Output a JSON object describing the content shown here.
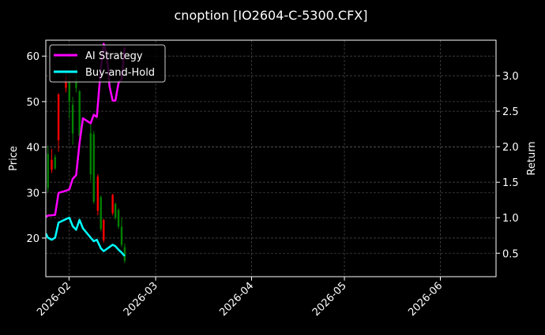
{
  "title": "cnoption [IO2604-C-5300.CFX]",
  "chart_data": {
    "type": "line",
    "title": "cnoption [IO2604-C-5300.CFX]",
    "xlabel": "",
    "ylabel": "Price",
    "ylabel_right": "Return",
    "grid": true,
    "legend_position": "upper left",
    "x_tick_labels": [
      "2026-02",
      "2026-03",
      "2026-04",
      "2026-05",
      "2026-06"
    ],
    "y_left_ticks": [
      20,
      30,
      40,
      50,
      60
    ],
    "y_left_range": [
      11.5,
      63.5
    ],
    "y_right_ticks": [
      0.5,
      1.0,
      1.5,
      2.0,
      2.5,
      3.0
    ],
    "y_right_range": [
      0.17,
      3.5
    ],
    "x_range_days": [
      -7.5,
      138
    ],
    "legend": [
      {
        "name": "AI Strategy",
        "color": "#ff00ff"
      },
      {
        "name": "Buy-and-Hold",
        "color": "#00ffff"
      }
    ],
    "colors": {
      "up": "#008000",
      "down": "#ff0000",
      "grid": "#444444",
      "axes": "#ffffff",
      "background": "#000000"
    },
    "candles": [
      {
        "d": -6.8,
        "o": 31.0,
        "h": 40.3,
        "l": 30.0,
        "c": 38.5
      },
      {
        "d": -5.6,
        "o": 37.2,
        "h": 39.6,
        "l": 34.3,
        "c": 35.0
      },
      {
        "d": -4.5,
        "o": 35.3,
        "h": 38.4,
        "l": 35.0,
        "c": 37.8
      },
      {
        "d": -3.4,
        "o": 51.6,
        "h": 51.8,
        "l": 39.0,
        "c": 41.5
      },
      {
        "d": -1.0,
        "o": 55.5,
        "h": 57.0,
        "l": 52.0,
        "c": 53.0
      },
      {
        "d": 0.1,
        "o": 50.0,
        "h": 56.0,
        "l": 46.3,
        "c": 54.5
      },
      {
        "d": 1.2,
        "o": 43.0,
        "h": 51.0,
        "l": 40.5,
        "c": 49.3
      },
      {
        "d": 2.3,
        "o": 53.0,
        "h": 58.0,
        "l": 52.0,
        "c": 55.0
      },
      {
        "d": 3.4,
        "o": 42.5,
        "h": 52.5,
        "l": 40.0,
        "c": 52.3
      },
      {
        "d": 7.0,
        "o": 34.0,
        "h": 45.0,
        "l": 32.5,
        "c": 43.0
      },
      {
        "d": 8.0,
        "o": 28.0,
        "h": 43.5,
        "l": 27.5,
        "c": 42.8
      },
      {
        "d": 9.3,
        "o": 33.5,
        "h": 34.0,
        "l": 25.0,
        "c": 26.0
      },
      {
        "d": 10.3,
        "o": 22.0,
        "h": 29.3,
        "l": 21.5,
        "c": 29.0
      },
      {
        "d": 11.2,
        "o": 24.0,
        "h": 24.2,
        "l": 19.0,
        "c": 19.5
      },
      {
        "d": 14.1,
        "o": 29.5,
        "h": 29.7,
        "l": 25.0,
        "c": 25.5
      },
      {
        "d": 15.0,
        "o": 24.5,
        "h": 27.8,
        "l": 24.0,
        "c": 27.5
      },
      {
        "d": 16.0,
        "o": 22.5,
        "h": 26.5,
        "l": 22.0,
        "c": 26.2
      },
      {
        "d": 17.0,
        "o": 18.5,
        "h": 24.5,
        "l": 18.0,
        "c": 22.5
      },
      {
        "d": 18.0,
        "o": 15.0,
        "h": 18.8,
        "l": 14.5,
        "c": 18.0
      }
    ],
    "series": [
      {
        "name": "AI Strategy",
        "axis": "right",
        "color": "#ff00ff",
        "points": [
          [
            -7.5,
            1.01
          ],
          [
            -6.8,
            1.03
          ],
          [
            -4.5,
            1.04
          ],
          [
            -3.4,
            1.35
          ],
          [
            -1.0,
            1.38
          ],
          [
            0.1,
            1.4
          ],
          [
            1.2,
            1.55
          ],
          [
            2.3,
            1.6
          ],
          [
            3.4,
            2.05
          ],
          [
            4.5,
            2.4
          ],
          [
            7.0,
            2.33
          ],
          [
            8.0,
            2.45
          ],
          [
            9.0,
            2.42
          ],
          [
            10.3,
            3.1
          ],
          [
            11.2,
            3.45
          ],
          [
            12.2,
            3.3
          ],
          [
            13.1,
            2.85
          ],
          [
            14.1,
            2.65
          ],
          [
            15.0,
            2.65
          ],
          [
            16.0,
            2.9
          ],
          [
            17.0,
            2.95
          ],
          [
            18.0,
            3.4
          ]
        ]
      },
      {
        "name": "Buy-and-Hold",
        "axis": "right",
        "color": "#00ffff",
        "points": [
          [
            -7.5,
            0.78
          ],
          [
            -6.8,
            0.72
          ],
          [
            -5.6,
            0.69
          ],
          [
            -4.5,
            0.72
          ],
          [
            -3.4,
            0.93
          ],
          [
            -1.0,
            0.98
          ],
          [
            0.1,
            1.0
          ],
          [
            1.2,
            0.88
          ],
          [
            2.3,
            0.83
          ],
          [
            3.4,
            0.97
          ],
          [
            4.5,
            0.85
          ],
          [
            7.0,
            0.72
          ],
          [
            8.0,
            0.67
          ],
          [
            9.0,
            0.69
          ],
          [
            10.3,
            0.57
          ],
          [
            11.2,
            0.53
          ],
          [
            12.2,
            0.56
          ],
          [
            14.1,
            0.62
          ],
          [
            15.0,
            0.6
          ],
          [
            16.0,
            0.55
          ],
          [
            17.0,
            0.51
          ],
          [
            18.0,
            0.46
          ]
        ]
      }
    ]
  }
}
